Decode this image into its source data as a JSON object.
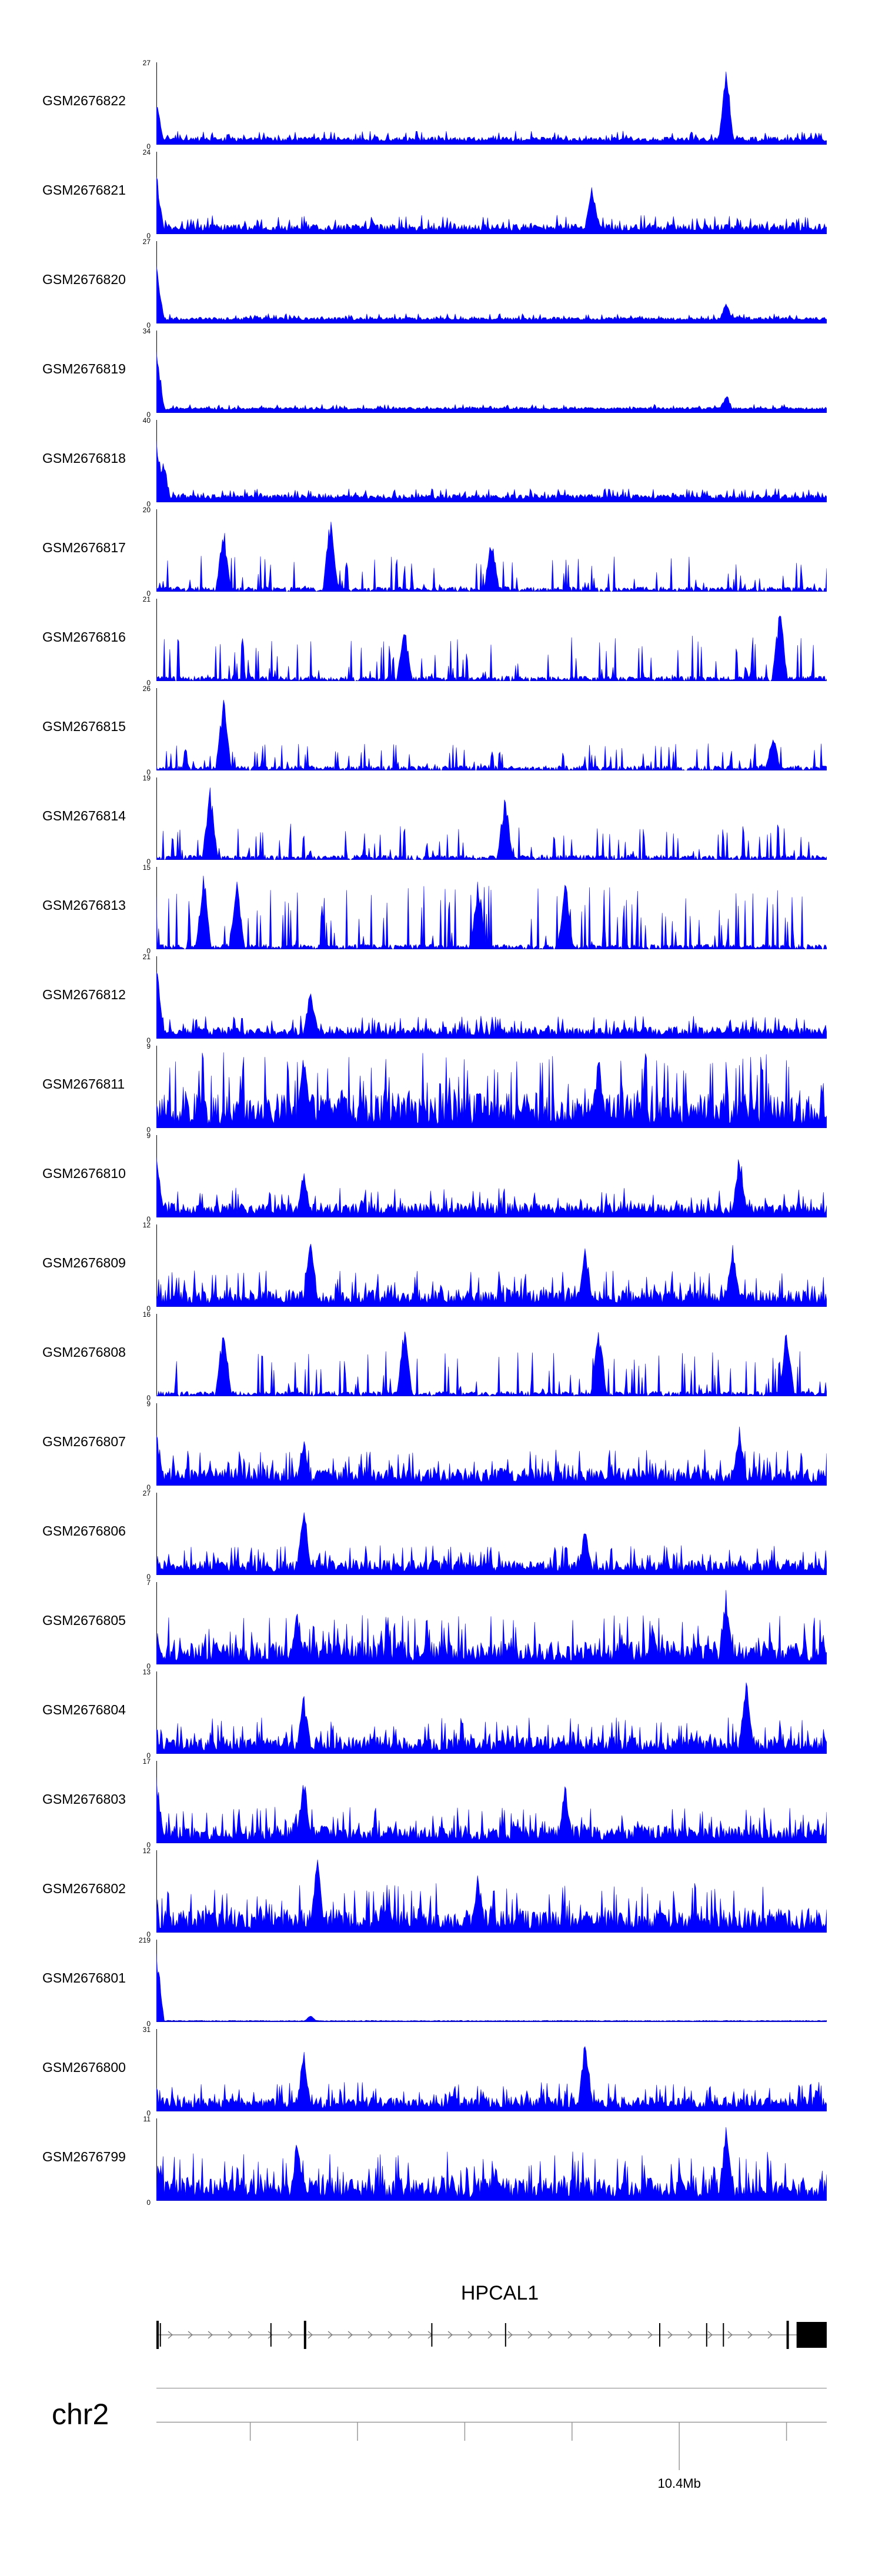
{
  "chart_data": {
    "type": "area",
    "color": "#0000ff",
    "tracks": [
      {
        "label": "GSM2676822",
        "max": "27",
        "min": "0",
        "seed": 11,
        "style": "dense",
        "spike": 0.08,
        "peaks": [
          [
            0.0,
            0.55
          ],
          [
            0.85,
            1.0
          ]
        ]
      },
      {
        "label": "GSM2676821",
        "max": "24",
        "min": "0",
        "seed": 12,
        "style": "dense",
        "spike": 0.12,
        "peaks": [
          [
            0.0,
            0.85
          ],
          [
            0.65,
            0.7
          ]
        ]
      },
      {
        "label": "GSM2676820",
        "max": "27",
        "min": "0",
        "seed": 13,
        "style": "dense",
        "spike": 0.05,
        "peaks": [
          [
            0.0,
            0.85
          ],
          [
            0.85,
            0.3
          ]
        ]
      },
      {
        "label": "GSM2676819",
        "max": "34",
        "min": "0",
        "seed": 14,
        "style": "dense",
        "spike": 0.04,
        "peaks": [
          [
            0.0,
            0.9
          ],
          [
            0.85,
            0.25
          ]
        ]
      },
      {
        "label": "GSM2676818",
        "max": "40",
        "min": "0",
        "seed": 15,
        "style": "dense",
        "spike": 0.08,
        "peaks": [
          [
            0.0,
            0.9
          ],
          [
            0.01,
            0.6
          ]
        ]
      },
      {
        "label": "GSM2676817",
        "max": "20",
        "min": "0",
        "seed": 16,
        "style": "sparse",
        "spike": 0.2,
        "peaks": [
          [
            0.26,
            1.0
          ],
          [
            0.1,
            0.85
          ],
          [
            0.5,
            0.7
          ]
        ]
      },
      {
        "label": "GSM2676816",
        "max": "21",
        "min": "0",
        "seed": 17,
        "style": "sparse",
        "spike": 0.25,
        "peaks": [
          [
            0.93,
            0.95
          ],
          [
            0.37,
            0.7
          ]
        ]
      },
      {
        "label": "GSM2676815",
        "max": "26",
        "min": "0",
        "seed": 18,
        "style": "sparse",
        "spike": 0.15,
        "peaks": [
          [
            0.1,
            0.95
          ],
          [
            0.92,
            0.45
          ]
        ]
      },
      {
        "label": "GSM2676814",
        "max": "19",
        "min": "0",
        "seed": 19,
        "style": "sparse",
        "spike": 0.2,
        "peaks": [
          [
            0.08,
            0.95
          ],
          [
            0.52,
            0.85
          ]
        ]
      },
      {
        "label": "GSM2676813",
        "max": "15",
        "min": "0",
        "seed": 20,
        "style": "sparse",
        "spike": 0.35,
        "peaks": [
          [
            0.07,
            0.95
          ],
          [
            0.12,
            0.9
          ],
          [
            0.48,
            0.95
          ],
          [
            0.61,
            0.9
          ]
        ]
      },
      {
        "label": "GSM2676812",
        "max": "21",
        "min": "0",
        "seed": 21,
        "style": "dense",
        "spike": 0.15,
        "peaks": [
          [
            0.0,
            0.95
          ],
          [
            0.23,
            0.65
          ]
        ]
      },
      {
        "label": "GSM2676811",
        "max": "9",
        "min": "0",
        "seed": 22,
        "style": "dense",
        "spike": 0.55,
        "peaks": [
          [
            0.22,
            0.95
          ],
          [
            0.66,
            0.95
          ]
        ]
      },
      {
        "label": "GSM2676810",
        "max": "9",
        "min": "0",
        "seed": 23,
        "style": "dense",
        "spike": 0.2,
        "peaks": [
          [
            0.22,
            0.6
          ],
          [
            0.87,
            0.85
          ],
          [
            0.0,
            0.85
          ]
        ]
      },
      {
        "label": "GSM2676809",
        "max": "12",
        "min": "0",
        "seed": 24,
        "style": "dense",
        "spike": 0.25,
        "peaks": [
          [
            0.23,
            0.95
          ],
          [
            0.64,
            0.8
          ],
          [
            0.86,
            0.85
          ]
        ]
      },
      {
        "label": "GSM2676808",
        "max": "16",
        "min": "0",
        "seed": 25,
        "style": "sparse",
        "spike": 0.25,
        "peaks": [
          [
            0.1,
            0.95
          ],
          [
            0.37,
            0.9
          ],
          [
            0.66,
            0.9
          ],
          [
            0.94,
            0.9
          ]
        ]
      },
      {
        "label": "GSM2676807",
        "max": "9",
        "min": "0",
        "seed": 26,
        "style": "dense",
        "spike": 0.25,
        "peaks": [
          [
            0.22,
            0.65
          ],
          [
            0.87,
            0.75
          ],
          [
            0.0,
            0.7
          ]
        ]
      },
      {
        "label": "GSM2676806",
        "max": "27",
        "min": "0",
        "seed": 27,
        "style": "dense",
        "spike": 0.2,
        "peaks": [
          [
            0.22,
            0.95
          ],
          [
            0.64,
            0.65
          ]
        ]
      },
      {
        "label": "GSM2676805",
        "max": "7",
        "min": "0",
        "seed": 28,
        "style": "dense",
        "spike": 0.35,
        "peaks": [
          [
            0.21,
            0.7
          ],
          [
            0.85,
            0.95
          ]
        ]
      },
      {
        "label": "GSM2676804",
        "max": "13",
        "min": "0",
        "seed": 29,
        "style": "dense",
        "spike": 0.25,
        "peaks": [
          [
            0.22,
            0.75
          ],
          [
            0.88,
            0.95
          ]
        ]
      },
      {
        "label": "GSM2676803",
        "max": "17",
        "min": "0",
        "seed": 30,
        "style": "dense",
        "spike": 0.25,
        "peaks": [
          [
            0.0,
            0.9
          ],
          [
            0.22,
            0.85
          ],
          [
            0.61,
            0.75
          ]
        ]
      },
      {
        "label": "GSM2676802",
        "max": "12",
        "min": "0",
        "seed": 31,
        "style": "dense",
        "spike": 0.35,
        "peaks": [
          [
            0.24,
            0.95
          ],
          [
            0.48,
            0.75
          ]
        ]
      },
      {
        "label": "GSM2676801",
        "max": "219",
        "min": "0",
        "seed": 32,
        "style": "flat",
        "spike": 0.0,
        "peaks": [
          [
            0.0,
            0.95
          ],
          [
            0.23,
            0.08
          ]
        ]
      },
      {
        "label": "GSM2676800",
        "max": "31",
        "min": "0",
        "seed": 33,
        "style": "dense",
        "spike": 0.2,
        "peaks": [
          [
            0.22,
            0.8
          ],
          [
            0.64,
            0.95
          ]
        ]
      },
      {
        "label": "GSM2676799",
        "max": "11",
        "min": "0",
        "seed": 34,
        "style": "dense",
        "spike": 0.35,
        "peaks": [
          [
            0.21,
            0.8
          ],
          [
            0.85,
            0.95
          ]
        ]
      }
    ],
    "gene": {
      "name": "HPCAL1",
      "strand": "+",
      "exons": [
        0.0,
        0.005,
        0.17,
        0.22,
        0.41,
        0.52,
        0.75,
        0.82,
        0.845,
        0.94
      ],
      "utr_block": [
        0.955,
        1.0
      ]
    },
    "chromosome": "chr2",
    "axis": {
      "ticks": [
        0.14,
        0.3,
        0.46,
        0.62,
        0.78,
        0.94
      ],
      "labeled_tick": {
        "pos": 0.78,
        "label": "10.4Mb"
      }
    }
  }
}
